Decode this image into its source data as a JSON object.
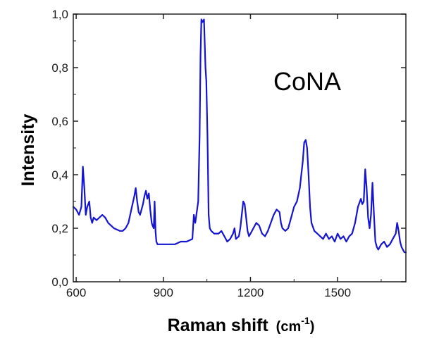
{
  "chart_data": {
    "type": "line",
    "title": "",
    "xlabel": "Raman shift",
    "xlabel_unit_base": "cm",
    "xlabel_unit_exp": "-1",
    "ylabel": "Intensity",
    "xlim": [
      590,
      1735
    ],
    "ylim": [
      0,
      1.0
    ],
    "x_ticks": [
      600,
      900,
      1200,
      1500
    ],
    "x_tick_labels": [
      "600",
      "900",
      "1200",
      "1500"
    ],
    "y_ticks": [
      0,
      0.2,
      0.4,
      0.6,
      0.8,
      1.0
    ],
    "y_tick_labels": [
      "0,0",
      "0,2",
      "0,4",
      "0,6",
      "0,8",
      "1,0"
    ],
    "annotation": "CoNA",
    "series_color": "#1515d0",
    "series": [
      {
        "name": "CoNA",
        "x": [
          590,
          600,
          610,
          618,
          623,
          628,
          633,
          638,
          645,
          650,
          655,
          660,
          670,
          690,
          700,
          710,
          720,
          730,
          750,
          760,
          770,
          780,
          790,
          800,
          805,
          810,
          815,
          820,
          830,
          835,
          840,
          845,
          850,
          855,
          860,
          863,
          867,
          870,
          873,
          876,
          880,
          885,
          890,
          900,
          920,
          940,
          960,
          980,
          1000,
          1005,
          1010,
          1020,
          1025,
          1028,
          1031,
          1035,
          1040,
          1045,
          1048,
          1052,
          1056,
          1060,
          1065,
          1075,
          1090,
          1100,
          1110,
          1120,
          1130,
          1140,
          1145,
          1150,
          1160,
          1165,
          1170,
          1175,
          1180,
          1185,
          1190,
          1195,
          1200,
          1210,
          1220,
          1230,
          1240,
          1250,
          1260,
          1270,
          1280,
          1290,
          1300,
          1305,
          1310,
          1320,
          1330,
          1340,
          1350,
          1360,
          1370,
          1380,
          1385,
          1390,
          1395,
          1400,
          1405,
          1410,
          1420,
          1430,
          1440,
          1450,
          1460,
          1470,
          1480,
          1490,
          1500,
          1510,
          1520,
          1530,
          1540,
          1550,
          1560,
          1570,
          1580,
          1585,
          1590,
          1595,
          1600,
          1605,
          1610,
          1615,
          1620,
          1625,
          1630,
          1635,
          1640,
          1650,
          1660,
          1670,
          1680,
          1690,
          1700,
          1705,
          1710,
          1715,
          1720,
          1730,
          1735
        ],
        "y": [
          0.28,
          0.27,
          0.25,
          0.28,
          0.43,
          0.35,
          0.25,
          0.28,
          0.3,
          0.24,
          0.22,
          0.24,
          0.23,
          0.25,
          0.24,
          0.22,
          0.21,
          0.2,
          0.19,
          0.19,
          0.2,
          0.22,
          0.27,
          0.32,
          0.35,
          0.3,
          0.26,
          0.25,
          0.29,
          0.32,
          0.34,
          0.31,
          0.33,
          0.27,
          0.22,
          0.21,
          0.2,
          0.3,
          0.19,
          0.15,
          0.14,
          0.14,
          0.14,
          0.14,
          0.14,
          0.14,
          0.15,
          0.15,
          0.16,
          0.25,
          0.22,
          0.3,
          0.55,
          0.85,
          0.98,
          0.97,
          0.98,
          0.8,
          0.75,
          0.55,
          0.25,
          0.2,
          0.19,
          0.18,
          0.18,
          0.19,
          0.17,
          0.15,
          0.16,
          0.18,
          0.2,
          0.16,
          0.17,
          0.2,
          0.25,
          0.3,
          0.29,
          0.24,
          0.19,
          0.17,
          0.18,
          0.2,
          0.22,
          0.21,
          0.18,
          0.17,
          0.19,
          0.22,
          0.25,
          0.27,
          0.26,
          0.22,
          0.2,
          0.19,
          0.2,
          0.24,
          0.28,
          0.3,
          0.35,
          0.45,
          0.52,
          0.53,
          0.5,
          0.4,
          0.28,
          0.22,
          0.19,
          0.18,
          0.17,
          0.16,
          0.18,
          0.16,
          0.17,
          0.15,
          0.18,
          0.16,
          0.17,
          0.15,
          0.17,
          0.18,
          0.22,
          0.28,
          0.31,
          0.29,
          0.3,
          0.42,
          0.35,
          0.24,
          0.2,
          0.25,
          0.37,
          0.25,
          0.15,
          0.13,
          0.12,
          0.14,
          0.15,
          0.13,
          0.14,
          0.16,
          0.18,
          0.22,
          0.19,
          0.15,
          0.13,
          0.11,
          0.11
        ]
      }
    ]
  }
}
